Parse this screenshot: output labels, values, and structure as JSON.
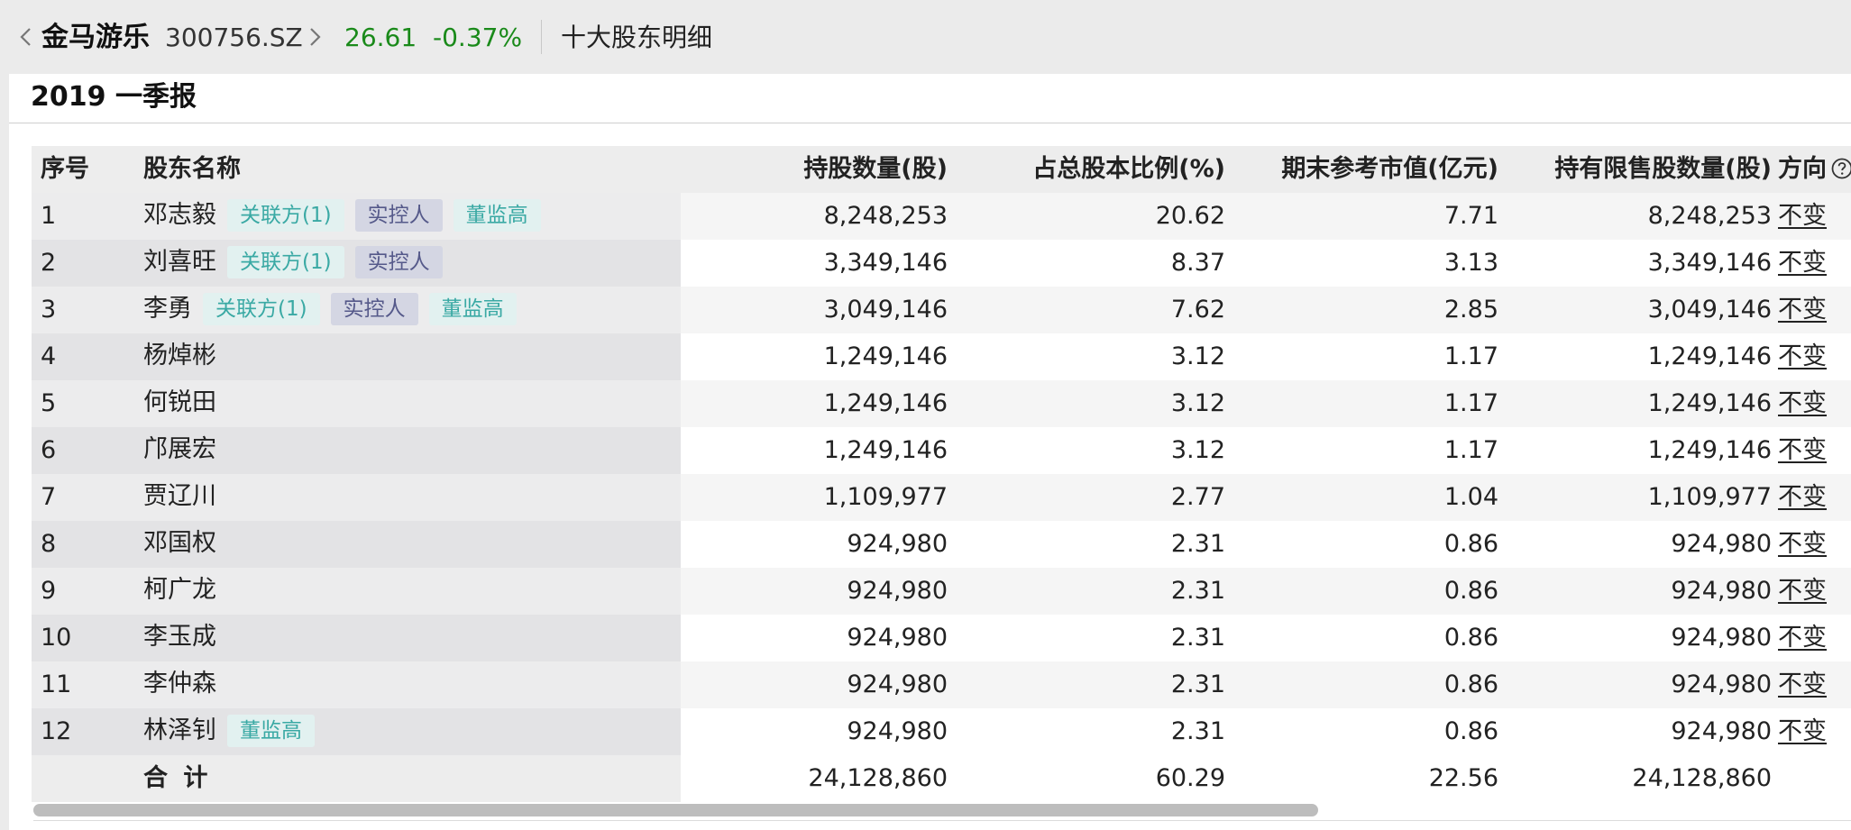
{
  "header": {
    "stock_name": "金马游乐",
    "stock_code": "300756.SZ",
    "price": "26.61",
    "change": "-0.37%",
    "page_title": "十大股东明细",
    "price_color": "#1a8a1a"
  },
  "period": "2019 一季报",
  "columns": {
    "idx": "序号",
    "name": "股东名称",
    "shares": "持股数量(股)",
    "ratio": "占总股本比例(%)",
    "value": "期末参考市值(亿元)",
    "restricted": "持有限售股数量(股)",
    "direction": "方向"
  },
  "rows": [
    {
      "idx": "1",
      "name": "邓志毅",
      "tags": [
        "关联方(1)",
        "实控人",
        "董监高"
      ],
      "shares": "8,248,253",
      "ratio": "20.62",
      "value": "7.71",
      "restricted": "8,248,253",
      "direction": "不变"
    },
    {
      "idx": "2",
      "name": "刘喜旺",
      "tags": [
        "关联方(1)",
        "实控人"
      ],
      "shares": "3,349,146",
      "ratio": "8.37",
      "value": "3.13",
      "restricted": "3,349,146",
      "direction": "不变"
    },
    {
      "idx": "3",
      "name": "李勇",
      "tags": [
        "关联方(1)",
        "实控人",
        "董监高"
      ],
      "shares": "3,049,146",
      "ratio": "7.62",
      "value": "2.85",
      "restricted": "3,049,146",
      "direction": "不变"
    },
    {
      "idx": "4",
      "name": "杨焯彬",
      "tags": [],
      "shares": "1,249,146",
      "ratio": "3.12",
      "value": "1.17",
      "restricted": "1,249,146",
      "direction": "不变"
    },
    {
      "idx": "5",
      "name": "何锐田",
      "tags": [],
      "shares": "1,249,146",
      "ratio": "3.12",
      "value": "1.17",
      "restricted": "1,249,146",
      "direction": "不变"
    },
    {
      "idx": "6",
      "name": "邝展宏",
      "tags": [],
      "shares": "1,249,146",
      "ratio": "3.12",
      "value": "1.17",
      "restricted": "1,249,146",
      "direction": "不变"
    },
    {
      "idx": "7",
      "name": "贾辽川",
      "tags": [],
      "shares": "1,109,977",
      "ratio": "2.77",
      "value": "1.04",
      "restricted": "1,109,977",
      "direction": "不变"
    },
    {
      "idx": "8",
      "name": "邓国权",
      "tags": [],
      "shares": "924,980",
      "ratio": "2.31",
      "value": "0.86",
      "restricted": "924,980",
      "direction": "不变"
    },
    {
      "idx": "9",
      "name": "柯广龙",
      "tags": [],
      "shares": "924,980",
      "ratio": "2.31",
      "value": "0.86",
      "restricted": "924,980",
      "direction": "不变"
    },
    {
      "idx": "10",
      "name": "李玉成",
      "tags": [],
      "shares": "924,980",
      "ratio": "2.31",
      "value": "0.86",
      "restricted": "924,980",
      "direction": "不变"
    },
    {
      "idx": "11",
      "name": "李仲森",
      "tags": [],
      "shares": "924,980",
      "ratio": "2.31",
      "value": "0.86",
      "restricted": "924,980",
      "direction": "不变"
    },
    {
      "idx": "12",
      "name": "林泽钊",
      "tags": [
        "董监高"
      ],
      "shares": "924,980",
      "ratio": "2.31",
      "value": "0.86",
      "restricted": "924,980",
      "direction": "不变"
    }
  ],
  "total": {
    "label": "合 计",
    "shares": "24,128,860",
    "ratio": "60.29",
    "value": "22.56",
    "restricted": "24,128,860"
  },
  "icons": {
    "back": "chevron-left-icon",
    "forward": "chevron-right-icon",
    "help": "question-circle-icon"
  }
}
